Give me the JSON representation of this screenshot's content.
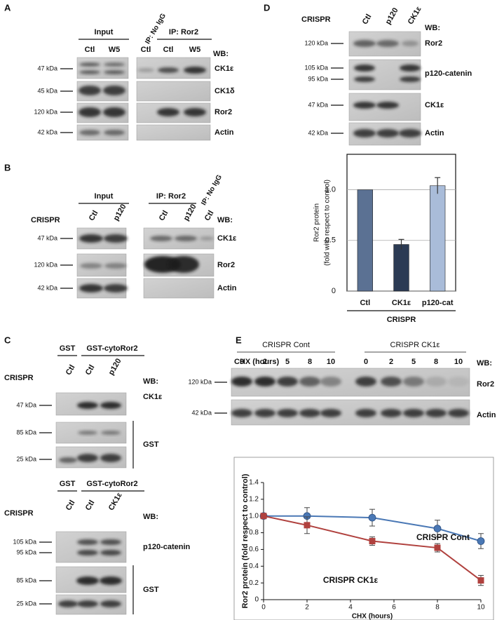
{
  "panels": {
    "A": {
      "letter": "A",
      "groups": [
        "Input",
        "IP: Ror2"
      ],
      "rotated": "IP: No IgG",
      "lanes": [
        "Ctl",
        "W5",
        "Ctl",
        "Ctl",
        "W5"
      ],
      "wb": "WB:",
      "markers": [
        "47 kDa",
        "45 kDa",
        "120 kDa",
        "42 kDa"
      ],
      "proteins": [
        "CK1ε",
        "CK1δ",
        "Ror2",
        "Actin"
      ]
    },
    "B": {
      "letter": "B",
      "groups": [
        "Input",
        "IP: Ror2"
      ],
      "rotated": "IP: No IgG",
      "row_label": "CRISPR",
      "lanes": [
        "Ctl",
        "p120",
        "Ctl",
        "p120",
        "Ctl"
      ],
      "wb": "WB:",
      "markers": [
        "47 kDa",
        "120 kDa",
        "42 kDa"
      ],
      "proteins": [
        "CK1ε",
        "Ror2",
        "Actin"
      ]
    },
    "C": {
      "letter": "C",
      "top": {
        "groups": [
          "GST",
          "GST-cytoRor2"
        ],
        "row_label": "CRISPR",
        "lanes": [
          "Ctl",
          "Ctl",
          "p120"
        ],
        "wb": "WB:",
        "protein": "CK1ε",
        "markers": [
          "47 kDa",
          "85 kDa",
          "25 kDa"
        ],
        "bracket": "GST"
      },
      "bottom": {
        "groups": [
          "GST",
          "GST-cytoRor2"
        ],
        "row_label": "CRISPR",
        "lanes": [
          "Ctl",
          "Ctl",
          "CK1ε"
        ],
        "wb": "WB:",
        "protein": "p120-catenin",
        "markers": [
          "105 kDa",
          "95 kDa",
          "85 kDa",
          "25 kDa"
        ],
        "bracket": "GST"
      }
    },
    "D": {
      "letter": "D",
      "row_label": "CRISPR",
      "lanes": [
        "Ctl",
        "p120",
        "CK1ε"
      ],
      "wb": "WB:",
      "markers": [
        "120 kDa",
        "105 kDa",
        "95 kDa",
        "47 kDa",
        "42 kDa"
      ],
      "proteins": [
        "Ror2",
        "p120-catenin",
        "CK1ε",
        "Actin"
      ]
    },
    "E": {
      "letter": "E",
      "groups": [
        "CRISPR Cont",
        "CRISPR CK1ε"
      ],
      "row_label": "CHX (hours)",
      "lanes": [
        "0",
        "2",
        "5",
        "8",
        "10",
        "0",
        "2",
        "5",
        "8",
        "10"
      ],
      "wb": "WB:",
      "markers": [
        "120 kDa",
        "42 kDa"
      ],
      "proteins": [
        "Ror2",
        "Actin"
      ]
    }
  },
  "chart_data": [
    {
      "type": "bar",
      "categories": [
        "Ctl",
        "CK1ε",
        "p120-cat"
      ],
      "values": [
        1.0,
        0.46,
        1.04
      ],
      "errors": [
        null,
        0.05,
        0.08
      ],
      "colors": [
        "#5b7193",
        "#2c3b54",
        "#a9bcd9"
      ],
      "xlabel": "CRISPR",
      "ylabel": [
        "Ror2 protein",
        "(fold with respect to control)"
      ],
      "ylim": [
        0,
        1.35
      ],
      "yticks": [
        0,
        0.5,
        {
          "value": 1,
          "label": "1.0"
        }
      ],
      "grid": true
    },
    {
      "type": "line",
      "x": [
        0,
        2,
        5,
        8,
        10
      ],
      "xlabel": "CHX (hours)",
      "ylabel": "Ror2 protein (fold respect to control)",
      "series": [
        {
          "name": "CRISPR Cont",
          "color": "#4a78b5",
          "marker": "circle",
          "values": [
            1.0,
            1.0,
            0.98,
            0.85,
            0.7
          ],
          "errors": [
            0.02,
            0.1,
            0.1,
            0.1,
            0.09
          ]
        },
        {
          "name": "CRISPR CK1ε",
          "color": "#b0413e",
          "marker": "square",
          "values": [
            1.0,
            0.89,
            0.7,
            0.62,
            0.23
          ],
          "errors": [
            0.02,
            0.1,
            0.05,
            0.05,
            0.06
          ]
        }
      ],
      "xlim": [
        0,
        10
      ],
      "xticks": [
        0,
        2,
        4,
        6,
        8,
        10
      ],
      "ylim": [
        0,
        1.4
      ],
      "yticks": [
        0,
        0.2,
        0.4,
        0.6,
        0.8,
        {
          "value": 1,
          "label": "1.0"
        },
        1.2,
        1.4
      ]
    }
  ]
}
